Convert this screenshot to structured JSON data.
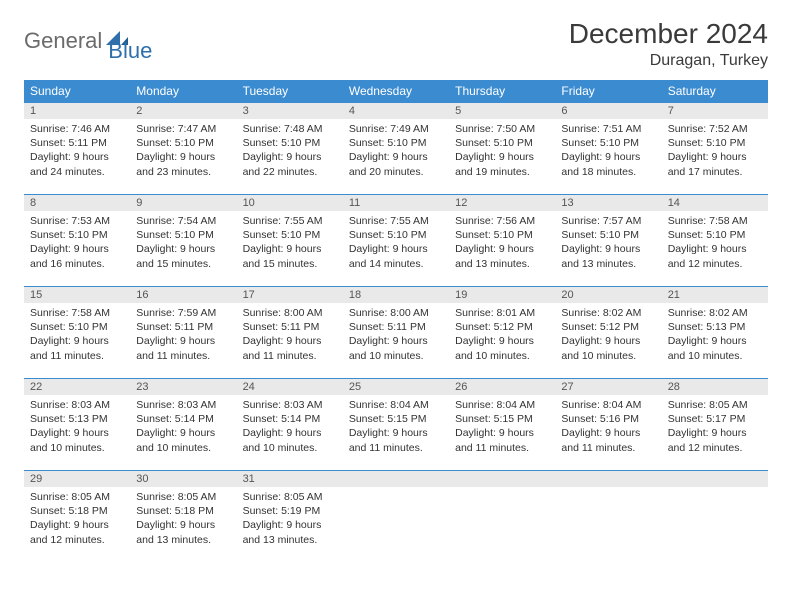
{
  "logo": {
    "text1": "General",
    "text2": "Blue"
  },
  "title": "December 2024",
  "location": "Duragan, Turkey",
  "colors": {
    "header_bg": "#3b8bd0",
    "header_text": "#ffffff",
    "daynum_bg": "#e9e9e9",
    "border": "#3b8bd0",
    "logo_gray": "#6b6b6b",
    "logo_blue": "#2f6fab"
  },
  "weekdays": [
    "Sunday",
    "Monday",
    "Tuesday",
    "Wednesday",
    "Thursday",
    "Friday",
    "Saturday"
  ],
  "weeks": [
    [
      {
        "n": "1",
        "sr": "Sunrise: 7:46 AM",
        "ss": "Sunset: 5:11 PM",
        "d1": "Daylight: 9 hours",
        "d2": "and 24 minutes."
      },
      {
        "n": "2",
        "sr": "Sunrise: 7:47 AM",
        "ss": "Sunset: 5:10 PM",
        "d1": "Daylight: 9 hours",
        "d2": "and 23 minutes."
      },
      {
        "n": "3",
        "sr": "Sunrise: 7:48 AM",
        "ss": "Sunset: 5:10 PM",
        "d1": "Daylight: 9 hours",
        "d2": "and 22 minutes."
      },
      {
        "n": "4",
        "sr": "Sunrise: 7:49 AM",
        "ss": "Sunset: 5:10 PM",
        "d1": "Daylight: 9 hours",
        "d2": "and 20 minutes."
      },
      {
        "n": "5",
        "sr": "Sunrise: 7:50 AM",
        "ss": "Sunset: 5:10 PM",
        "d1": "Daylight: 9 hours",
        "d2": "and 19 minutes."
      },
      {
        "n": "6",
        "sr": "Sunrise: 7:51 AM",
        "ss": "Sunset: 5:10 PM",
        "d1": "Daylight: 9 hours",
        "d2": "and 18 minutes."
      },
      {
        "n": "7",
        "sr": "Sunrise: 7:52 AM",
        "ss": "Sunset: 5:10 PM",
        "d1": "Daylight: 9 hours",
        "d2": "and 17 minutes."
      }
    ],
    [
      {
        "n": "8",
        "sr": "Sunrise: 7:53 AM",
        "ss": "Sunset: 5:10 PM",
        "d1": "Daylight: 9 hours",
        "d2": "and 16 minutes."
      },
      {
        "n": "9",
        "sr": "Sunrise: 7:54 AM",
        "ss": "Sunset: 5:10 PM",
        "d1": "Daylight: 9 hours",
        "d2": "and 15 minutes."
      },
      {
        "n": "10",
        "sr": "Sunrise: 7:55 AM",
        "ss": "Sunset: 5:10 PM",
        "d1": "Daylight: 9 hours",
        "d2": "and 15 minutes."
      },
      {
        "n": "11",
        "sr": "Sunrise: 7:55 AM",
        "ss": "Sunset: 5:10 PM",
        "d1": "Daylight: 9 hours",
        "d2": "and 14 minutes."
      },
      {
        "n": "12",
        "sr": "Sunrise: 7:56 AM",
        "ss": "Sunset: 5:10 PM",
        "d1": "Daylight: 9 hours",
        "d2": "and 13 minutes."
      },
      {
        "n": "13",
        "sr": "Sunrise: 7:57 AM",
        "ss": "Sunset: 5:10 PM",
        "d1": "Daylight: 9 hours",
        "d2": "and 13 minutes."
      },
      {
        "n": "14",
        "sr": "Sunrise: 7:58 AM",
        "ss": "Sunset: 5:10 PM",
        "d1": "Daylight: 9 hours",
        "d2": "and 12 minutes."
      }
    ],
    [
      {
        "n": "15",
        "sr": "Sunrise: 7:58 AM",
        "ss": "Sunset: 5:10 PM",
        "d1": "Daylight: 9 hours",
        "d2": "and 11 minutes."
      },
      {
        "n": "16",
        "sr": "Sunrise: 7:59 AM",
        "ss": "Sunset: 5:11 PM",
        "d1": "Daylight: 9 hours",
        "d2": "and 11 minutes."
      },
      {
        "n": "17",
        "sr": "Sunrise: 8:00 AM",
        "ss": "Sunset: 5:11 PM",
        "d1": "Daylight: 9 hours",
        "d2": "and 11 minutes."
      },
      {
        "n": "18",
        "sr": "Sunrise: 8:00 AM",
        "ss": "Sunset: 5:11 PM",
        "d1": "Daylight: 9 hours",
        "d2": "and 10 minutes."
      },
      {
        "n": "19",
        "sr": "Sunrise: 8:01 AM",
        "ss": "Sunset: 5:12 PM",
        "d1": "Daylight: 9 hours",
        "d2": "and 10 minutes."
      },
      {
        "n": "20",
        "sr": "Sunrise: 8:02 AM",
        "ss": "Sunset: 5:12 PM",
        "d1": "Daylight: 9 hours",
        "d2": "and 10 minutes."
      },
      {
        "n": "21",
        "sr": "Sunrise: 8:02 AM",
        "ss": "Sunset: 5:13 PM",
        "d1": "Daylight: 9 hours",
        "d2": "and 10 minutes."
      }
    ],
    [
      {
        "n": "22",
        "sr": "Sunrise: 8:03 AM",
        "ss": "Sunset: 5:13 PM",
        "d1": "Daylight: 9 hours",
        "d2": "and 10 minutes."
      },
      {
        "n": "23",
        "sr": "Sunrise: 8:03 AM",
        "ss": "Sunset: 5:14 PM",
        "d1": "Daylight: 9 hours",
        "d2": "and 10 minutes."
      },
      {
        "n": "24",
        "sr": "Sunrise: 8:03 AM",
        "ss": "Sunset: 5:14 PM",
        "d1": "Daylight: 9 hours",
        "d2": "and 10 minutes."
      },
      {
        "n": "25",
        "sr": "Sunrise: 8:04 AM",
        "ss": "Sunset: 5:15 PM",
        "d1": "Daylight: 9 hours",
        "d2": "and 11 minutes."
      },
      {
        "n": "26",
        "sr": "Sunrise: 8:04 AM",
        "ss": "Sunset: 5:15 PM",
        "d1": "Daylight: 9 hours",
        "d2": "and 11 minutes."
      },
      {
        "n": "27",
        "sr": "Sunrise: 8:04 AM",
        "ss": "Sunset: 5:16 PM",
        "d1": "Daylight: 9 hours",
        "d2": "and 11 minutes."
      },
      {
        "n": "28",
        "sr": "Sunrise: 8:05 AM",
        "ss": "Sunset: 5:17 PM",
        "d1": "Daylight: 9 hours",
        "d2": "and 12 minutes."
      }
    ],
    [
      {
        "n": "29",
        "sr": "Sunrise: 8:05 AM",
        "ss": "Sunset: 5:18 PM",
        "d1": "Daylight: 9 hours",
        "d2": "and 12 minutes."
      },
      {
        "n": "30",
        "sr": "Sunrise: 8:05 AM",
        "ss": "Sunset: 5:18 PM",
        "d1": "Daylight: 9 hours",
        "d2": "and 13 minutes."
      },
      {
        "n": "31",
        "sr": "Sunrise: 8:05 AM",
        "ss": "Sunset: 5:19 PM",
        "d1": "Daylight: 9 hours",
        "d2": "and 13 minutes."
      },
      {
        "n": "",
        "sr": "",
        "ss": "",
        "d1": "",
        "d2": ""
      },
      {
        "n": "",
        "sr": "",
        "ss": "",
        "d1": "",
        "d2": ""
      },
      {
        "n": "",
        "sr": "",
        "ss": "",
        "d1": "",
        "d2": ""
      },
      {
        "n": "",
        "sr": "",
        "ss": "",
        "d1": "",
        "d2": ""
      }
    ]
  ]
}
